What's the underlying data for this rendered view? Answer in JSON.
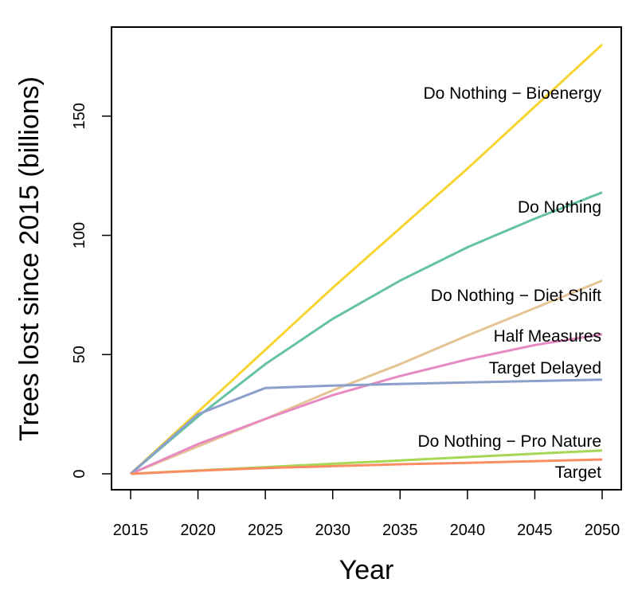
{
  "chart_data": {
    "type": "line",
    "xlabel": "Year",
    "ylabel": "Trees lost since 2015 (billions)",
    "xlim": [
      2015,
      2050
    ],
    "ylim": [
      0,
      180
    ],
    "x_ticks": [
      2015,
      2020,
      2025,
      2030,
      2035,
      2040,
      2045,
      2050
    ],
    "y_ticks": [
      0,
      50,
      100,
      150
    ],
    "grid": false,
    "legend": "none",
    "x": [
      2015,
      2020,
      2025,
      2030,
      2035,
      2040,
      2045,
      2050
    ],
    "series": [
      {
        "name": "Do Nothing − Bioenergy",
        "color": "#f7d42f",
        "values": [
          0,
          26,
          52,
          78,
          103,
          128,
          154,
          180
        ]
      },
      {
        "name": "Do Nothing",
        "color": "#66c2a5",
        "values": [
          0,
          24,
          46,
          65,
          81,
          95,
          107,
          118
        ]
      },
      {
        "name": "Do Nothing − Diet Shift",
        "color": "#e5c494",
        "values": [
          0,
          11.5,
          23,
          35,
          46,
          58,
          69.5,
          81
        ]
      },
      {
        "name": "Half Measures",
        "color": "#e78ac3",
        "values": [
          0,
          12.5,
          23,
          33,
          41,
          48,
          54,
          58.5
        ]
      },
      {
        "name": "Target Delayed",
        "color": "#8da0cb",
        "values": [
          0,
          25,
          36,
          37,
          37.7,
          38.3,
          38.9,
          39.5
        ]
      },
      {
        "name": "Do Nothing − Pro Nature",
        "color": "#a6d854",
        "values": [
          0,
          1.4,
          2.8,
          4.2,
          5.6,
          7,
          8.4,
          9.8
        ]
      },
      {
        "name": "Target",
        "color": "#fc8d62",
        "values": [
          0,
          1.3,
          2.4,
          3.2,
          4,
          4.6,
          5.3,
          6
        ]
      }
    ]
  }
}
